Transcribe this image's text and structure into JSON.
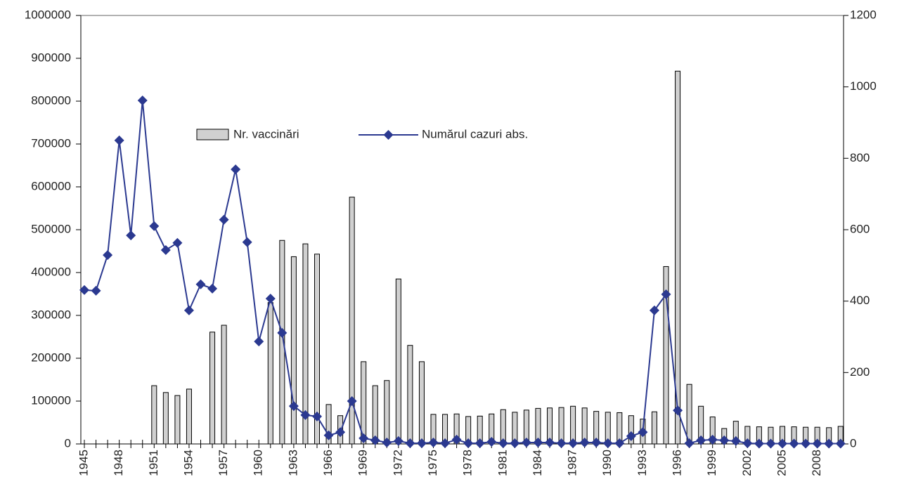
{
  "chart_data": {
    "type": "bar_line",
    "categories": [
      "1945",
      null,
      null,
      "1948",
      null,
      null,
      "1951",
      null,
      null,
      "1954",
      null,
      null,
      "1957",
      null,
      null,
      "1960",
      null,
      null,
      "1963",
      null,
      null,
      "1966",
      null,
      null,
      "1969",
      null,
      null,
      "1972",
      null,
      null,
      "1975",
      null,
      null,
      "1978",
      null,
      null,
      "1981",
      null,
      null,
      "1984",
      null,
      null,
      "1987",
      null,
      null,
      "1990",
      null,
      null,
      "1993",
      null,
      null,
      "1996",
      null,
      null,
      "1999",
      null,
      null,
      "2002",
      null,
      null,
      "2005",
      null,
      null,
      "2008",
      null,
      null
    ],
    "series": [
      {
        "name": "Nr. vaccinări",
        "color": "#d0d0d0",
        "kind": "bar",
        "values": [
          null,
          null,
          null,
          null,
          null,
          null,
          136000,
          120000,
          113000,
          128000,
          null,
          261000,
          277000,
          null,
          null,
          null,
          330000,
          475000,
          437000,
          467000,
          443000,
          92000,
          66000,
          576000,
          192000,
          136000,
          148000,
          385000,
          230000,
          192000,
          69000,
          69000,
          70000,
          64000,
          65000,
          70000,
          80000,
          74000,
          79000,
          83000,
          84000,
          85000,
          88000,
          84000,
          76000,
          74000,
          73000,
          66000,
          58000,
          75000,
          414000,
          870000,
          139000,
          88000,
          63000,
          36000,
          53000,
          41000,
          40000,
          39000,
          41000,
          40000,
          39000,
          39000,
          38000,
          41000
        ]
      },
      {
        "name": "Numărul cazuri  abs.",
        "color": "#2b3990",
        "kind": "line",
        "axis": "y2",
        "values": [
          431,
          429,
          529,
          850,
          584,
          962,
          610,
          543,
          563,
          374,
          447,
          435,
          628,
          769,
          565,
          287,
          407,
          311,
          106,
          81,
          77,
          24,
          33,
          120,
          16,
          10,
          4,
          8,
          2,
          2,
          4,
          2,
          12,
          2,
          2,
          6,
          2,
          2,
          4,
          4,
          4,
          2,
          2,
          4,
          4,
          2,
          2,
          22,
          33,
          374,
          419,
          94,
          2,
          10,
          12,
          10,
          8,
          2,
          1,
          1,
          1,
          1,
          1,
          1,
          1,
          1
        ]
      }
    ],
    "ylim": [
      0,
      1000000
    ],
    "yticks": [
      0,
      100000,
      200000,
      300000,
      400000,
      500000,
      600000,
      700000,
      800000,
      900000,
      1000000
    ],
    "y2lim": [
      0,
      1200
    ],
    "y2ticks": [
      0,
      200,
      400,
      600,
      800,
      1000,
      1200
    ]
  }
}
